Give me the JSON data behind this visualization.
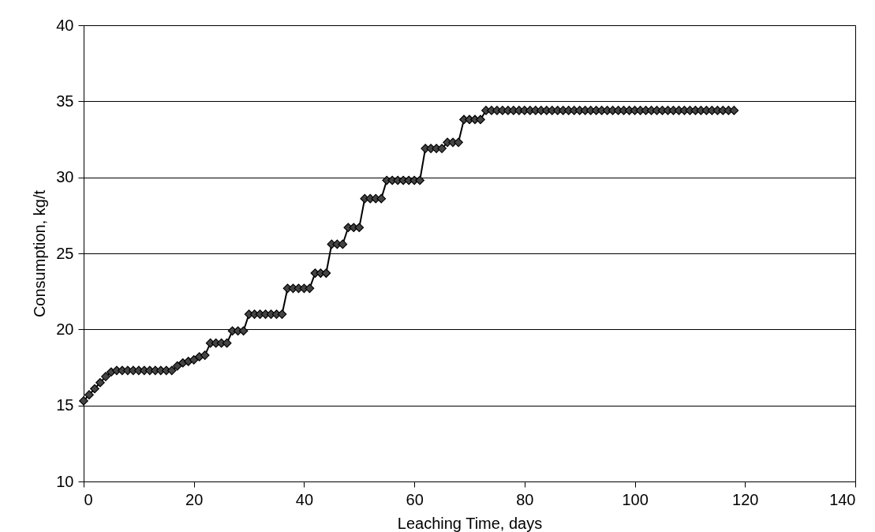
{
  "chart_data": {
    "type": "line",
    "xlabel": "Leaching Time, days",
    "ylabel": "Consumption, kg/t",
    "x": [
      0,
      1,
      2,
      3,
      4,
      5,
      6,
      7,
      8,
      9,
      10,
      11,
      12,
      13,
      14,
      15,
      16,
      17,
      18,
      19,
      20,
      21,
      22,
      23,
      24,
      25,
      26,
      27,
      28,
      29,
      30,
      31,
      32,
      33,
      34,
      35,
      36,
      37,
      38,
      39,
      40,
      41,
      42,
      43,
      44,
      45,
      46,
      47,
      48,
      49,
      50,
      51,
      52,
      53,
      54,
      55,
      56,
      57,
      58,
      59,
      60,
      61,
      62,
      63,
      64,
      65,
      66,
      67,
      68,
      69,
      70,
      71,
      72,
      73,
      74,
      75,
      76,
      77,
      78,
      79,
      80,
      81,
      82,
      83,
      84,
      85,
      86,
      87,
      88,
      89,
      90,
      91,
      92,
      93,
      94,
      95,
      96,
      97,
      98,
      99,
      100,
      101,
      102,
      103,
      104,
      105,
      106,
      107,
      108,
      109,
      110,
      111,
      112,
      113,
      114,
      115,
      116,
      117,
      118
    ],
    "series": [
      {
        "color": "#444444",
        "values": [
          15.3,
          15.7,
          16.1,
          16.5,
          16.9,
          17.2,
          17.3,
          17.3,
          17.3,
          17.3,
          17.3,
          17.3,
          17.3,
          17.3,
          17.3,
          17.3,
          17.3,
          17.6,
          17.8,
          17.9,
          18.0,
          18.2,
          18.3,
          19.1,
          19.1,
          19.1,
          19.1,
          19.9,
          19.9,
          19.9,
          21.0,
          21.0,
          21.0,
          21.0,
          21.0,
          21.0,
          21.0,
          22.7,
          22.7,
          22.7,
          22.7,
          22.7,
          23.7,
          23.7,
          23.7,
          25.6,
          25.6,
          25.6,
          26.7,
          26.7,
          26.7,
          28.6,
          28.6,
          28.6,
          28.6,
          29.8,
          29.8,
          29.8,
          29.8,
          29.8,
          29.8,
          29.8,
          31.9,
          31.9,
          31.9,
          31.9,
          32.3,
          32.3,
          32.3,
          33.8,
          33.8,
          33.8,
          33.8,
          34.4,
          34.4,
          34.4,
          34.4,
          34.4,
          34.4,
          34.4,
          34.4,
          34.4,
          34.4,
          34.4,
          34.4,
          34.4,
          34.4,
          34.4,
          34.4,
          34.4,
          34.4,
          34.4,
          34.4,
          34.4,
          34.4,
          34.4,
          34.4,
          34.4,
          34.4,
          34.4,
          34.4,
          34.4,
          34.4,
          34.4,
          34.4,
          34.4,
          34.4,
          34.4,
          34.4,
          34.4,
          34.4,
          34.4,
          34.4,
          34.4,
          34.4,
          34.4,
          34.4,
          34.4,
          34.4
        ]
      }
    ],
    "xlim": [
      0,
      140
    ],
    "xticks": [
      0,
      20,
      40,
      60,
      80,
      100,
      120,
      140
    ],
    "ylim": [
      10,
      40
    ],
    "yticks": [
      10,
      15,
      20,
      25,
      30,
      35,
      40
    ],
    "grid": "y",
    "marker": "diamond",
    "line_style": "solid"
  }
}
